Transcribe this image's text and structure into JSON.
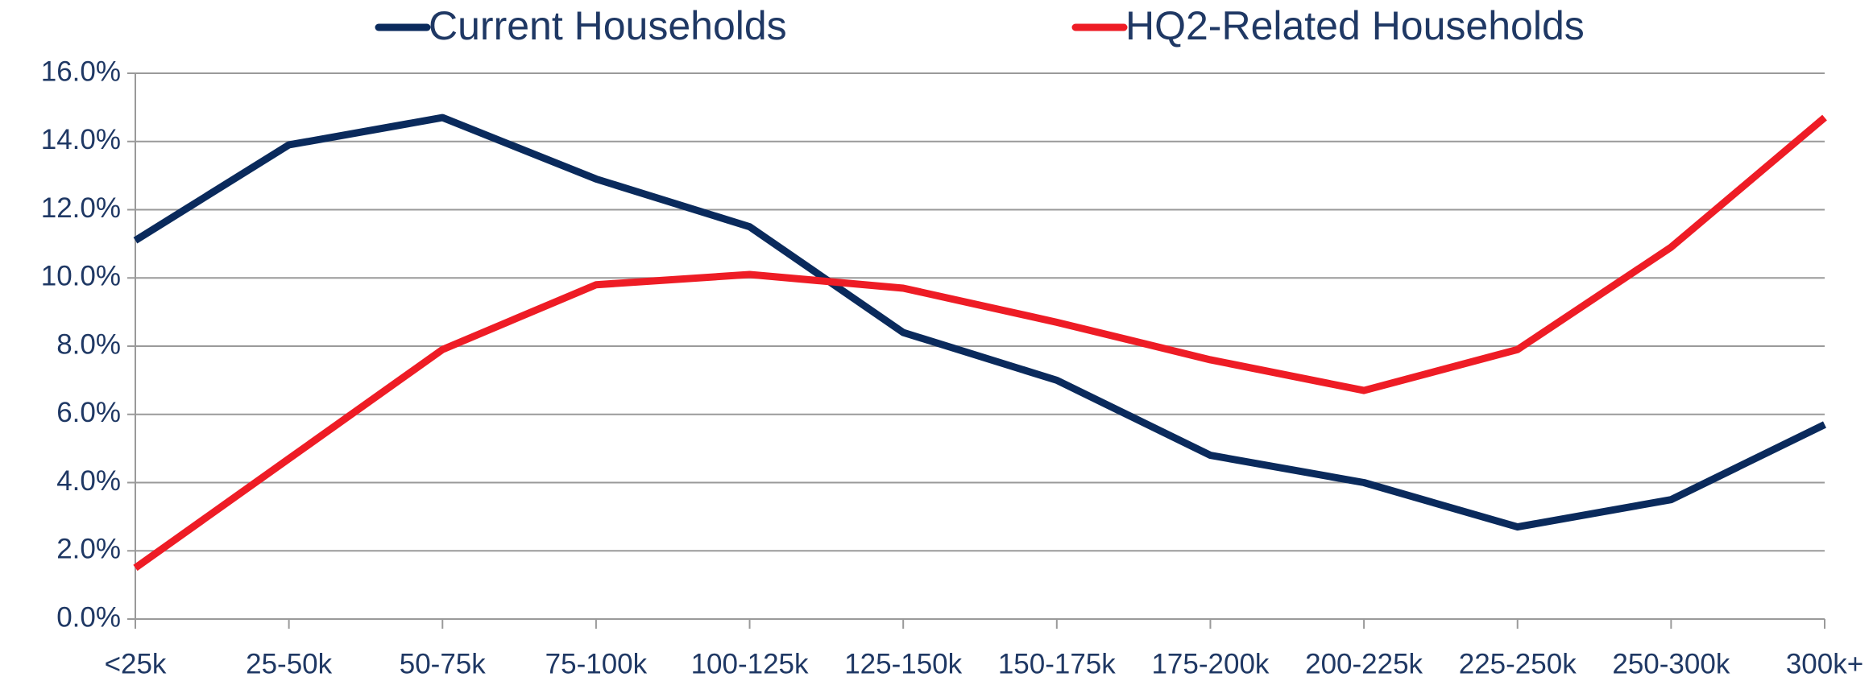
{
  "chart_data": {
    "type": "line",
    "categories": [
      "<25k",
      "25-50k",
      "50-75k",
      "75-100k",
      "100-125k",
      "125-150k",
      "150-175k",
      "175-200k",
      "200-225k",
      "225-250k",
      "250-300k",
      "300k+"
    ],
    "series": [
      {
        "name": "Current Households",
        "color": "#0a2a5c",
        "values": [
          11.1,
          13.9,
          14.7,
          12.9,
          11.5,
          8.4,
          7.0,
          4.8,
          4.0,
          2.7,
          3.5,
          5.7
        ]
      },
      {
        "name": "HQ2-Related Households",
        "color": "#ee1c25",
        "values": [
          1.5,
          4.7,
          7.9,
          9.8,
          10.1,
          9.7,
          8.7,
          7.6,
          6.7,
          7.9,
          10.9,
          14.7
        ]
      }
    ],
    "ylim": [
      0,
      16
    ],
    "yticks": [
      {
        "value": 0,
        "label": "0.0%"
      },
      {
        "value": 2,
        "label": "2.0%"
      },
      {
        "value": 4,
        "label": "4.0%"
      },
      {
        "value": 6,
        "label": "6.0%"
      },
      {
        "value": 8,
        "label": "8.0%"
      },
      {
        "value": 10,
        "label": "10.0%"
      },
      {
        "value": 12,
        "label": "12.0%"
      },
      {
        "value": 14,
        "label": "14.0%"
      },
      {
        "value": 16,
        "label": "16.0%"
      }
    ],
    "grid": true,
    "legend": "top"
  }
}
